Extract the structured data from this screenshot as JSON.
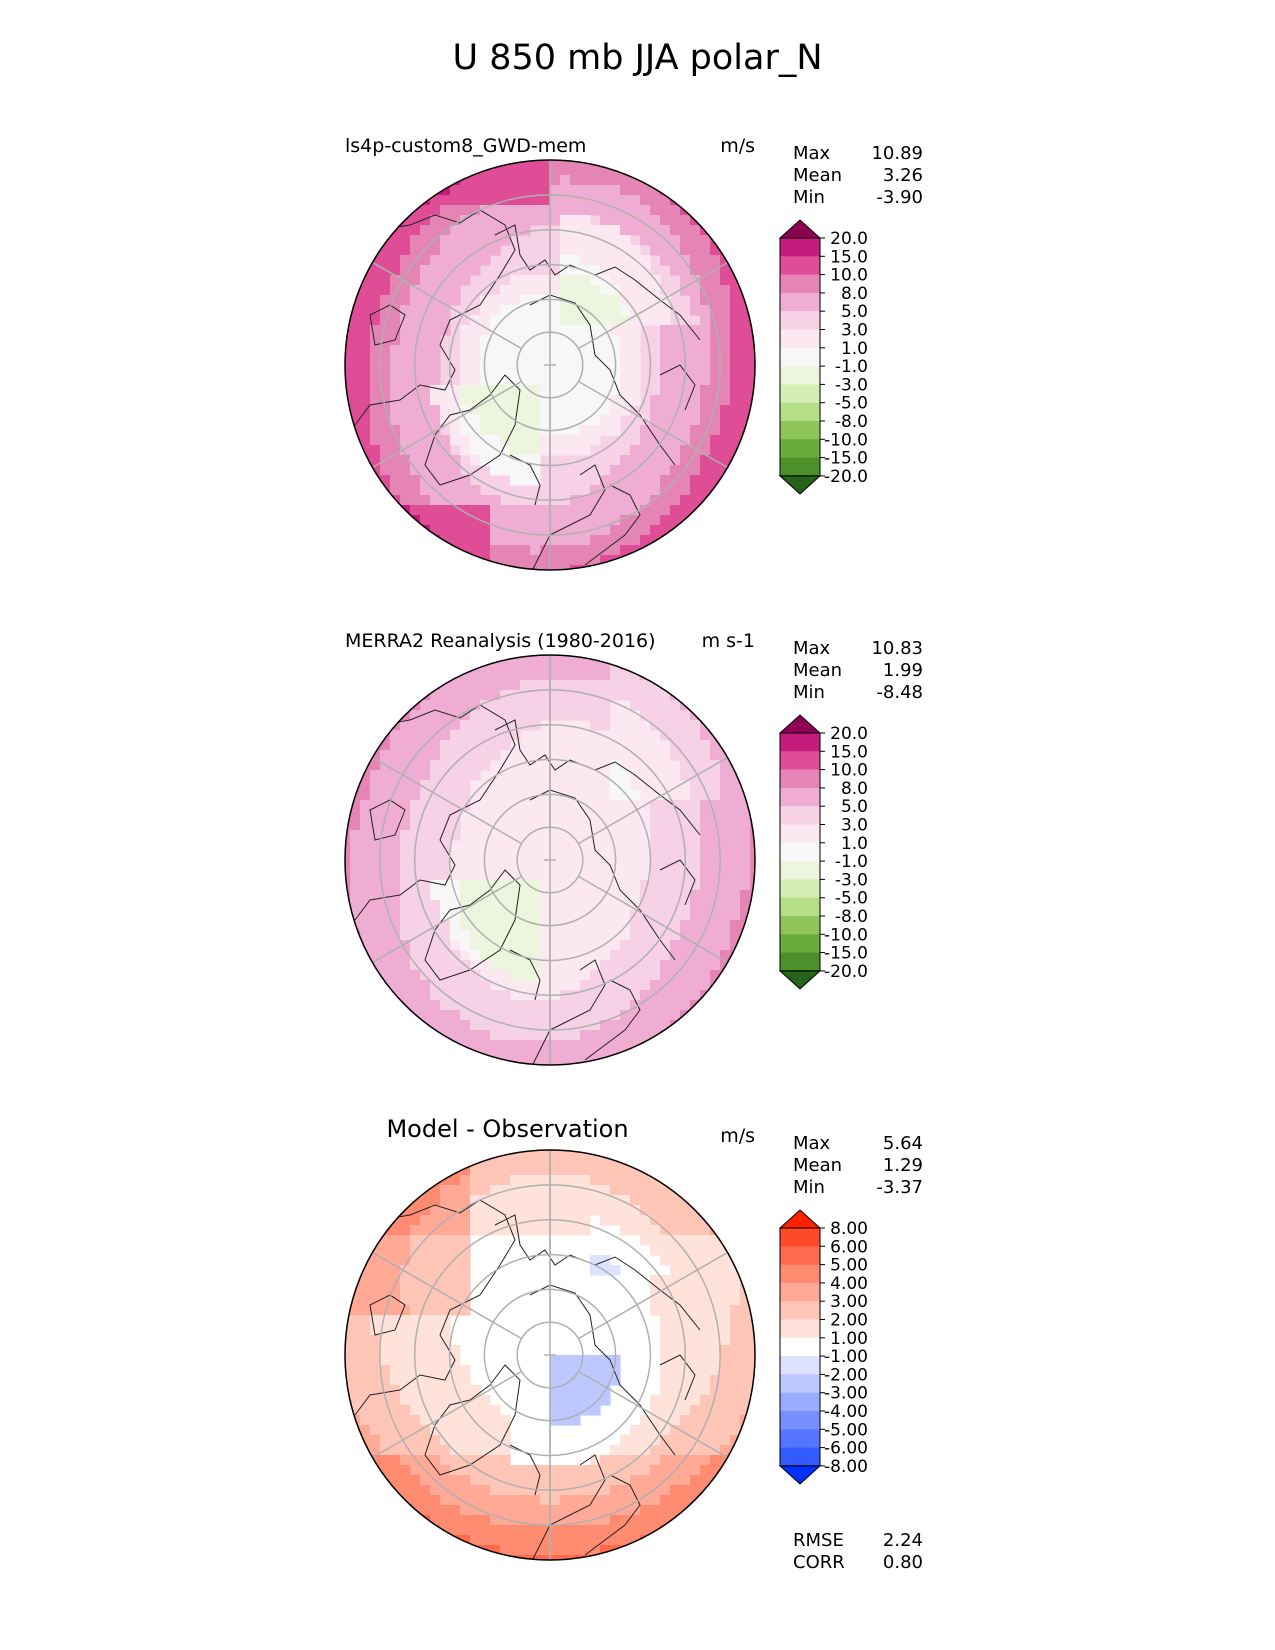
{
  "title": "U 850 mb JJA polar_N",
  "panels": [
    {
      "title": "ls4p-custom8_GWD-mem",
      "units": "m/s",
      "stats": [
        {
          "label": "Max",
          "value": "10.89"
        },
        {
          "label": "Mean",
          "value": "3.26"
        },
        {
          "label": "Min",
          "value": "-3.90"
        }
      ],
      "colorbar": {
        "labels": [
          "20.0",
          "15.0",
          "10.0",
          "8.0",
          "5.0",
          "3.0",
          "1.0",
          "-1.0",
          "-3.0",
          "-5.0",
          "-8.0",
          "-10.0",
          "-15.0",
          "-20.0"
        ],
        "colors": [
          "#8e0152",
          "#c51b7d",
          "#de4d95",
          "#e585b5",
          "#efadd4",
          "#f7d1e6",
          "#fbe8f1",
          "#f7f7f7",
          "#eef5de",
          "#d5eeb5",
          "#b5df88",
          "#8ec55b",
          "#6aab3d",
          "#4d8f28",
          "#276419"
        ]
      }
    },
    {
      "title": "MERRA2 Reanalysis (1980-2016)",
      "units": "m s-1",
      "stats": [
        {
          "label": "Max",
          "value": "10.83"
        },
        {
          "label": "Mean",
          "value": "1.99"
        },
        {
          "label": "Min",
          "value": "-8.48"
        }
      ],
      "colorbar": {
        "labels": [
          "20.0",
          "15.0",
          "10.0",
          "8.0",
          "5.0",
          "3.0",
          "1.0",
          "-1.0",
          "-3.0",
          "-5.0",
          "-8.0",
          "-10.0",
          "-15.0",
          "-20.0"
        ],
        "colors": [
          "#8e0152",
          "#c51b7d",
          "#de4d95",
          "#e585b5",
          "#efadd4",
          "#f7d1e6",
          "#fbe8f1",
          "#f7f7f7",
          "#eef5de",
          "#d5eeb5",
          "#b5df88",
          "#8ec55b",
          "#6aab3d",
          "#4d8f28",
          "#276419"
        ]
      }
    },
    {
      "title": "Model - Observation",
      "units": "m/s",
      "stats": [
        {
          "label": "Max",
          "value": "5.64"
        },
        {
          "label": "Mean",
          "value": "1.29"
        },
        {
          "label": "Min",
          "value": "-3.37"
        }
      ],
      "extra": [
        {
          "label": "RMSE",
          "value": "2.24"
        },
        {
          "label": "CORR",
          "value": "0.80"
        }
      ],
      "colorbar": {
        "labels": [
          "8.00",
          "6.00",
          "5.00",
          "4.00",
          "3.00",
          "2.00",
          "1.00",
          "-1.00",
          "-2.00",
          "-3.00",
          "-4.00",
          "-5.00",
          "-6.00",
          "-8.00"
        ],
        "colors": [
          "#ff2200",
          "#ff4a2a",
          "#ff6a4c",
          "#ff8b70",
          "#ffa996",
          "#ffc6b8",
          "#ffe3db",
          "#ffffff",
          "#dde3ff",
          "#bcc8ff",
          "#9aacff",
          "#7890ff",
          "#5575ff",
          "#335aff",
          "#0030ff"
        ]
      }
    }
  ],
  "chart_data": [
    {
      "type": "heatmap",
      "projection": "north polar stereographic",
      "title": "ls4p-custom8_GWD-mem",
      "units": "m/s",
      "max": 10.89,
      "mean": 3.26,
      "min": -3.9,
      "levels": [
        -20,
        -15,
        -10,
        -8,
        -5,
        -3,
        -1,
        1,
        3,
        5,
        8,
        10,
        15,
        20
      ]
    },
    {
      "type": "heatmap",
      "projection": "north polar stereographic",
      "title": "MERRA2 Reanalysis (1980-2016)",
      "units": "m s-1",
      "max": 10.83,
      "mean": 1.99,
      "min": -8.48,
      "levels": [
        -20,
        -15,
        -10,
        -8,
        -5,
        -3,
        -1,
        1,
        3,
        5,
        8,
        10,
        15,
        20
      ]
    },
    {
      "type": "heatmap",
      "projection": "north polar stereographic",
      "title": "Model - Observation",
      "units": "m/s",
      "max": 5.64,
      "mean": 1.29,
      "min": -3.37,
      "rmse": 2.24,
      "corr": 0.8,
      "levels": [
        -8,
        -6,
        -5,
        -4,
        -3,
        -2,
        -1,
        1,
        2,
        3,
        4,
        5,
        6,
        8
      ]
    }
  ]
}
